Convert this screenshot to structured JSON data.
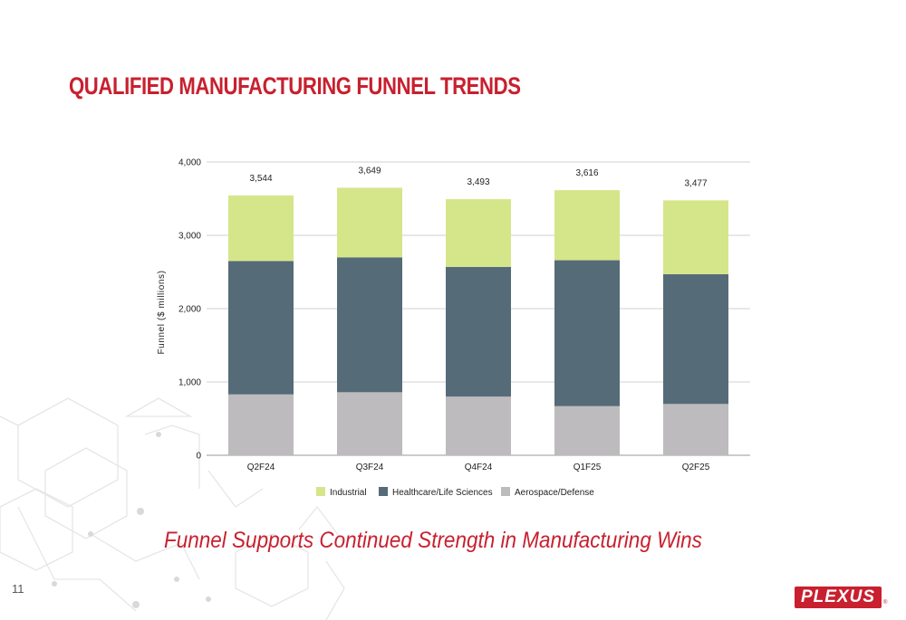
{
  "slide": {
    "title": "QUALIFIED MANUFACTURING FUNNEL TRENDS",
    "subtitle": "Funnel Supports Continued Strength in Manufacturing Wins",
    "page_number": "11",
    "logo_text": "PLEXUS",
    "logo_mark": "®"
  },
  "colors": {
    "accent": "#c8202f",
    "industrial": "#d5e68a",
    "healthcare": "#566b78",
    "aerospace": "#bdbbbd"
  },
  "chart_data": {
    "type": "bar",
    "stacked": true,
    "title": "",
    "xlabel": "",
    "ylabel": "Funnel ($ millions)",
    "ylim": [
      0,
      4000
    ],
    "yticks": [
      0,
      1000,
      2000,
      3000,
      4000
    ],
    "ytick_labels": [
      "0",
      "1,000",
      "2,000",
      "3,000",
      "4,000"
    ],
    "grid": true,
    "legend_position": "bottom",
    "categories": [
      "Q2F24",
      "Q3F24",
      "Q4F24",
      "Q1F25",
      "Q2F25"
    ],
    "series": [
      {
        "name": "Aerospace/Defense",
        "color": "#bdbbbd",
        "values": [
          830,
          860,
          800,
          670,
          700
        ]
      },
      {
        "name": "Healthcare/Life Sciences",
        "color": "#566b78",
        "values": [
          1820,
          1840,
          1770,
          1990,
          1770
        ]
      },
      {
        "name": "Industrial",
        "color": "#d5e68a",
        "values": [
          894,
          949,
          923,
          956,
          1007
        ]
      }
    ],
    "legend_order": [
      "Industrial",
      "Healthcare/Life Sciences",
      "Aerospace/Defense"
    ],
    "totals": [
      3544,
      3649,
      3493,
      3616,
      3477
    ],
    "total_labels": [
      "3,544",
      "3,649",
      "3,493",
      "3,616",
      "3,477"
    ]
  }
}
